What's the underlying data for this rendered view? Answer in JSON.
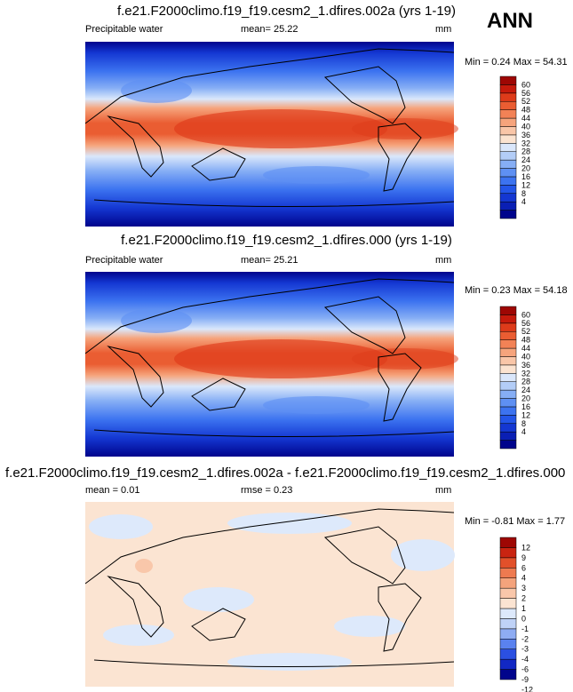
{
  "season": "ANN",
  "colors": {
    "full": [
      "#00048c",
      "#0a1fb4",
      "#1437d2",
      "#2355e8",
      "#3c73f0",
      "#5e90f3",
      "#86aef5",
      "#b3cdf7",
      "#dae7fb",
      "#fbe3d0",
      "#f9c6a8",
      "#f6a47c",
      "#f28256",
      "#ea5d32",
      "#de3b1a",
      "#c61a0c",
      "#9e0704"
    ],
    "diff": [
      "#00048c",
      "#1228c4",
      "#2b50e2",
      "#5a82ef",
      "#8eacf3",
      "#bfd2f7",
      "#dde9fb",
      "#fbe4d2",
      "#f9c7aa",
      "#f4a37c",
      "#ee7a50",
      "#e2502a",
      "#c92411",
      "#9e0704"
    ]
  },
  "panels": [
    {
      "title": "f.e21.F2000climo.f19_f19.cesm2_1.dfires.002a (yrs 1-19)",
      "variable": "Precipitable water",
      "stat_text": "mean=  25.22",
      "units": "mm",
      "minmax": "Min =   0.24 Max =  54.31",
      "colorbar_labels": [
        "60",
        "56",
        "52",
        "48",
        "44",
        "40",
        "36",
        "32",
        "28",
        "24",
        "20",
        "16",
        "12",
        "8",
        "4"
      ]
    },
    {
      "title": "f.e21.F2000climo.f19_f19.cesm2_1.dfires.000 (yrs 1-19)",
      "variable": "Precipitable water",
      "stat_text": "mean=  25.21",
      "units": "mm",
      "minmax": "Min =   0.23 Max =  54.18",
      "colorbar_labels": [
        "60",
        "56",
        "52",
        "48",
        "44",
        "40",
        "36",
        "32",
        "28",
        "24",
        "20",
        "16",
        "12",
        "8",
        "4"
      ]
    },
    {
      "title": "f.e21.F2000climo.f19_f19.cesm2_1.dfires.002a - f.e21.F2000climo.f19_f19.cesm2_1.dfires.000",
      "stat_mean": "mean =   0.01",
      "stat_rmse": "rmse =   0.23",
      "units": "mm",
      "minmax": "Min =  -0.81 Max =   1.77",
      "colorbar_labels": [
        "12",
        "9",
        "6",
        "4",
        "3",
        "2",
        "1",
        "0",
        "-1",
        "-2",
        "-3",
        "-4",
        "-6",
        "-9",
        "-12"
      ]
    }
  ]
}
